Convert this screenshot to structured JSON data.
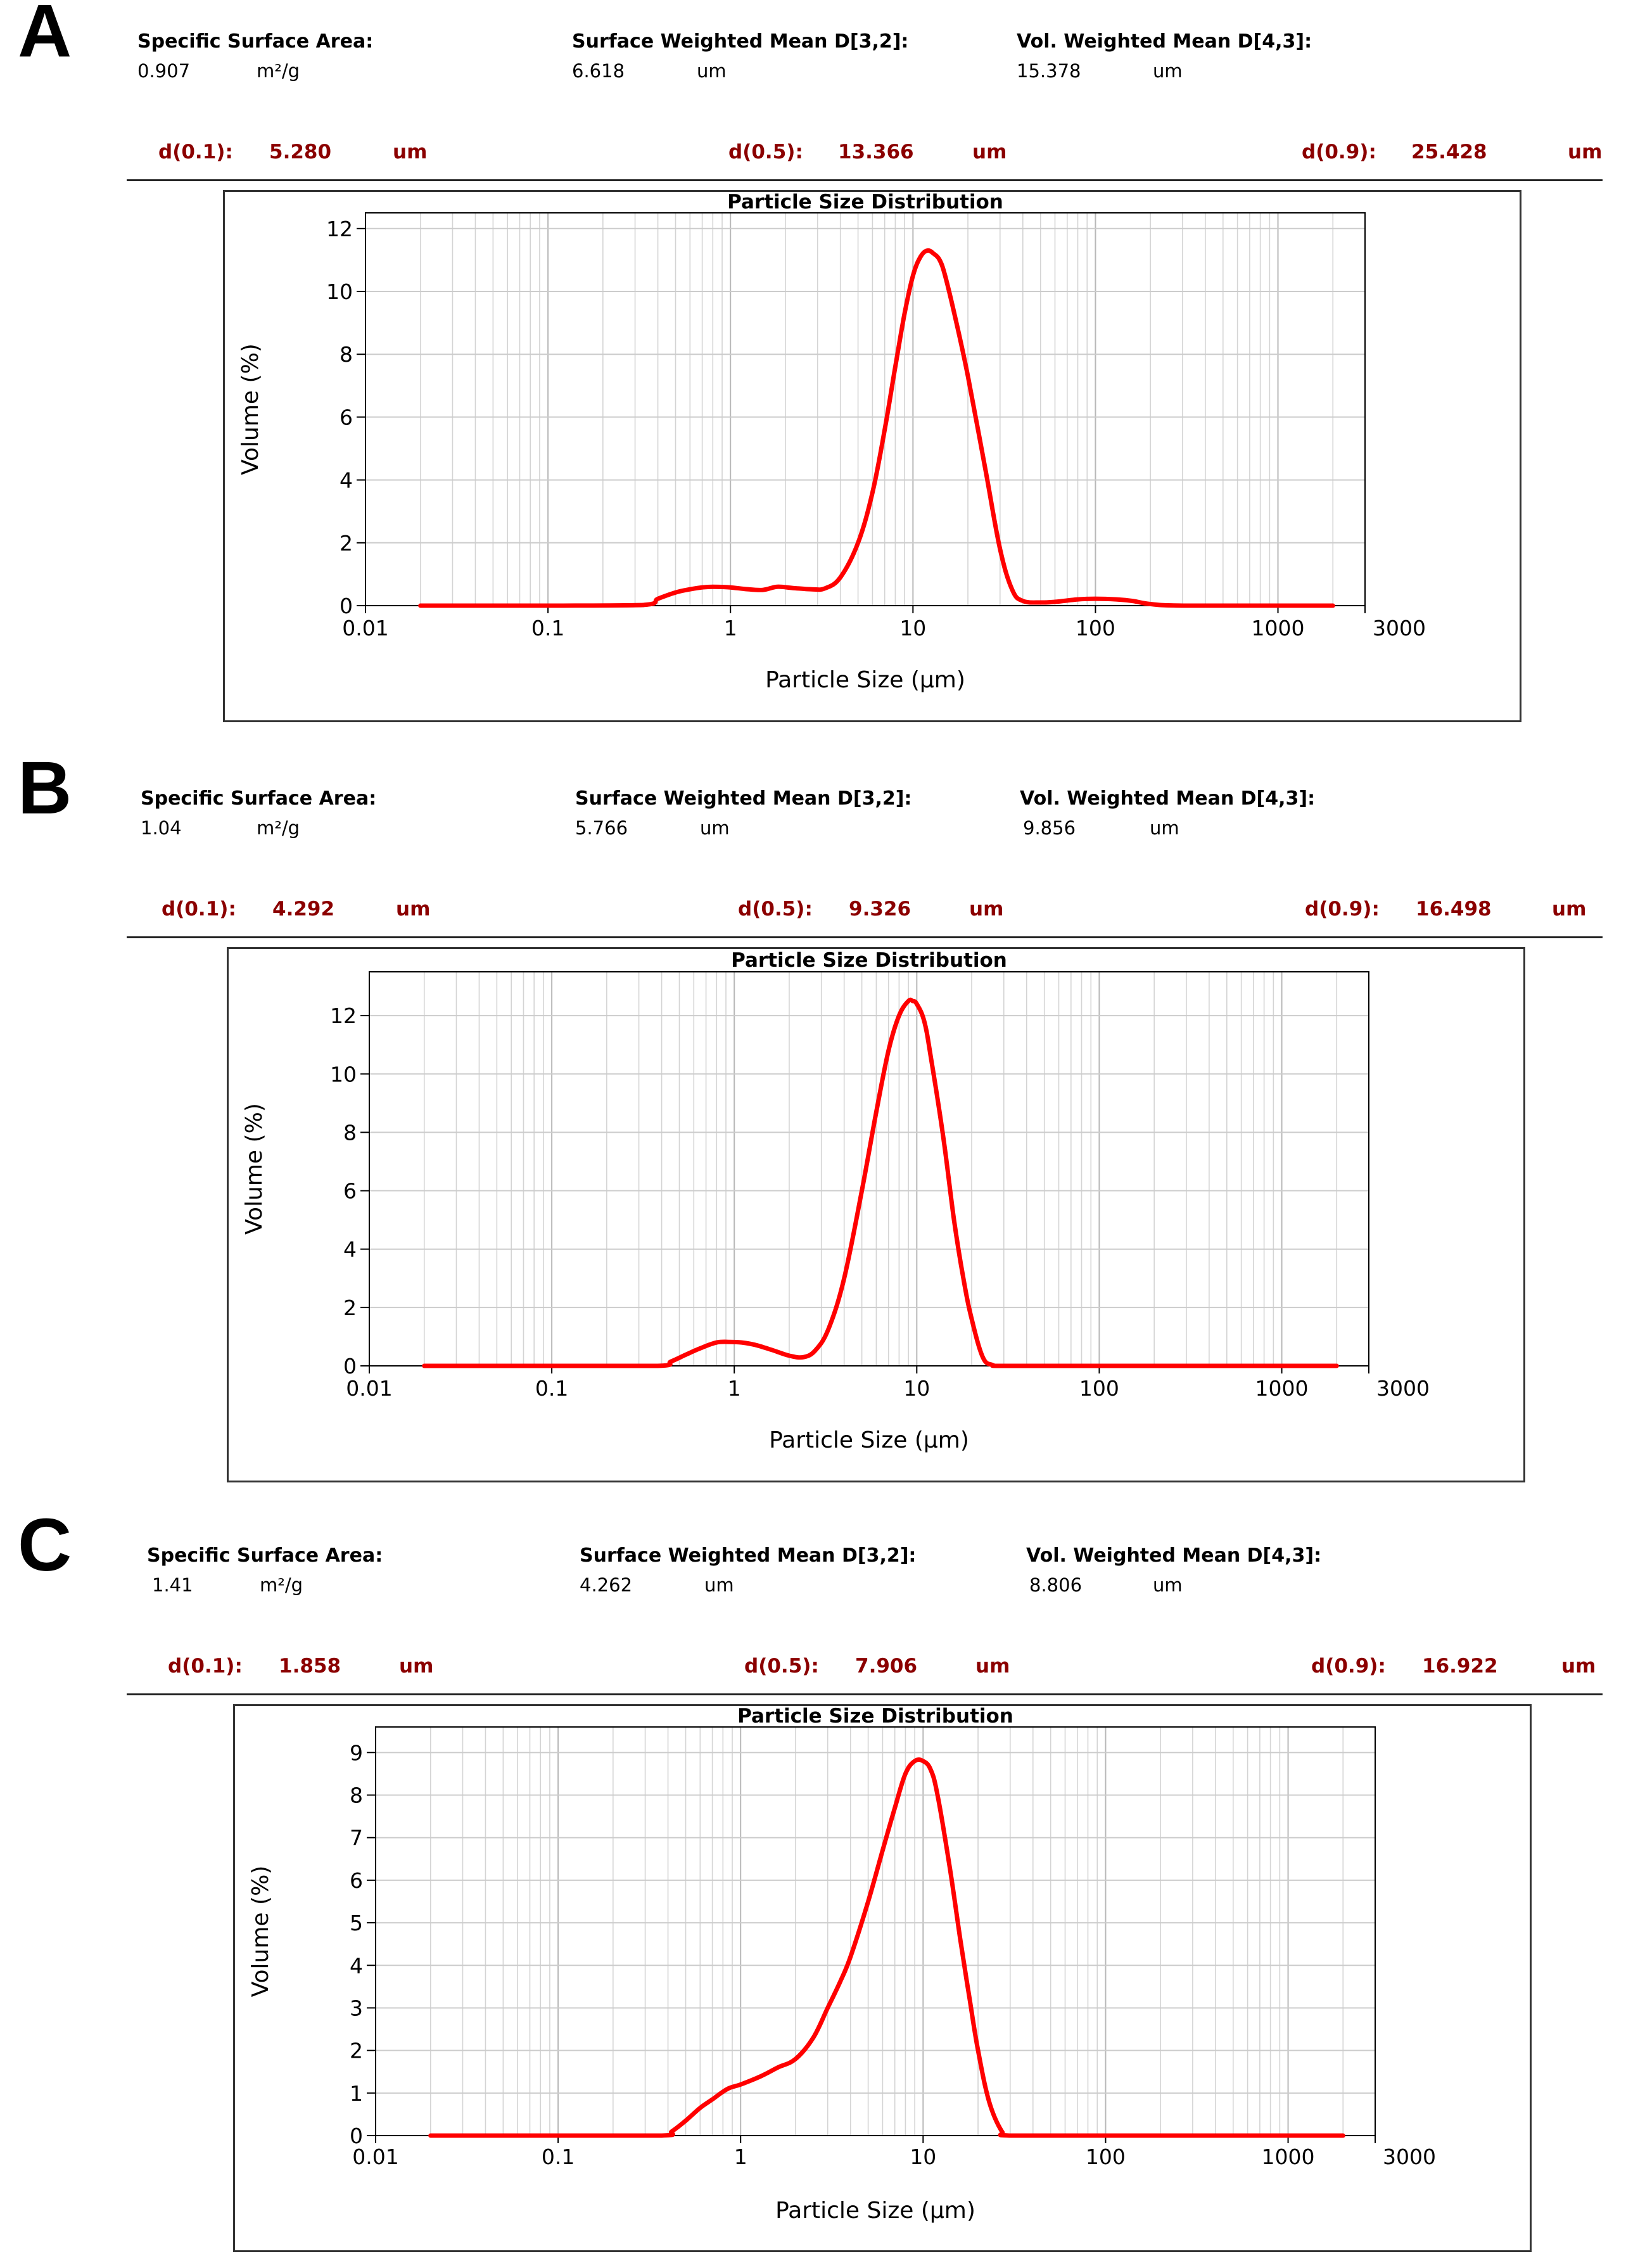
{
  "panels": [
    {
      "letter": "A",
      "ssa_label": "Specific Surface Area:",
      "ssa_value": "0.907",
      "ssa_unit": "m²/g",
      "d32_label": "Surface Weighted Mean D[3,2]:",
      "d32_value": "6.618",
      "d32_unit": "um",
      "d43_label": "Vol. Weighted Mean D[4,3]:",
      "d43_value": "15.378",
      "d43_unit": "um",
      "d01_label": "d(0.1):",
      "d01_value": "5.280",
      "d01_unit": "um",
      "d05_label": "d(0.5):",
      "d05_value": "13.366",
      "d05_unit": "um",
      "d09_label": "d(0.9):",
      "d09_value": "25.428",
      "d09_unit": "um"
    },
    {
      "letter": "B",
      "ssa_label": "Specific Surface Area:",
      "ssa_value": "1.04",
      "ssa_unit": "m²/g",
      "d32_label": "Surface Weighted Mean D[3,2]:",
      "d32_value": "5.766",
      "d32_unit": "um",
      "d43_label": "Vol. Weighted Mean D[4,3]:",
      "d43_value": "9.856",
      "d43_unit": "um",
      "d01_label": "d(0.1):",
      "d01_value": "4.292",
      "d01_unit": "um",
      "d05_label": "d(0.5):",
      "d05_value": "9.326",
      "d05_unit": "um",
      "d09_label": "d(0.9):",
      "d09_value": "16.498",
      "d09_unit": "um"
    },
    {
      "letter": "C",
      "ssa_label": "Specific Surface Area:",
      "ssa_value": "1.41",
      "ssa_unit": "m²/g",
      "d32_label": "Surface Weighted Mean D[3,2]:",
      "d32_value": "4.262",
      "d32_unit": "um",
      "d43_label": "Vol. Weighted Mean D[4,3]:",
      "d43_value": "8.806",
      "d43_unit": "um",
      "d01_label": "d(0.1):",
      "d01_value": "1.858",
      "d01_unit": "um",
      "d05_label": "d(0.5):",
      "d05_value": "7.906",
      "d05_unit": "um",
      "d09_label": "d(0.9):",
      "d09_value": "16.922",
      "d09_unit": "um"
    }
  ],
  "chart_data": [
    {
      "type": "line",
      "title": "Particle Size Distribution",
      "xlabel": "Particle Size (μm)",
      "ylabel": "Volume (%)",
      "xscale": "log",
      "xlim": [
        0.01,
        3000
      ],
      "ylim": [
        0,
        12.5
      ],
      "xticks": [
        0.01,
        0.1,
        1,
        10,
        100,
        1000,
        3000
      ],
      "xtick_labels": [
        "0.01",
        "0.1",
        "1",
        "10",
        "100",
        "1000",
        "3000"
      ],
      "yticks": [
        0,
        2,
        4,
        6,
        8,
        10,
        12
      ],
      "ytick_labels": [
        "0",
        "2",
        "4",
        "6",
        "8",
        "10",
        "12"
      ],
      "grid": true,
      "line_color": "#ff0000",
      "series": [
        {
          "name": "Volume",
          "x": [
            0.02,
            0.1,
            0.33,
            0.4,
            0.5,
            0.6,
            0.7,
            0.8,
            1.0,
            1.2,
            1.5,
            1.8,
            2.2,
            2.8,
            3.3,
            4.0,
            5.0,
            6.0,
            7.0,
            8.0,
            9.0,
            10.0,
            11.0,
            12.0,
            13.0,
            14.0,
            15.0,
            17.0,
            20.0,
            25.0,
            30.0,
            35.0,
            40.0,
            50.0,
            60.0,
            80.0,
            100.0,
            130.0,
            160.0,
            200.0,
            300.0,
            1000.0,
            2000.0
          ],
          "y": [
            0,
            0,
            0.02,
            0.22,
            0.42,
            0.52,
            0.58,
            0.6,
            0.58,
            0.53,
            0.5,
            0.6,
            0.56,
            0.52,
            0.55,
            0.9,
            2.0,
            3.6,
            5.6,
            7.6,
            9.3,
            10.5,
            11.1,
            11.3,
            11.2,
            11.0,
            10.5,
            9.2,
            7.3,
            4.3,
            1.8,
            0.5,
            0.15,
            0.1,
            0.12,
            0.2,
            0.22,
            0.2,
            0.15,
            0.05,
            0,
            0,
            0
          ]
        }
      ]
    },
    {
      "type": "line",
      "title": "Particle Size Distribution",
      "xlabel": "Particle Size (μm)",
      "ylabel": "Volume (%)",
      "xscale": "log",
      "xlim": [
        0.01,
        3000
      ],
      "ylim": [
        0,
        13.5
      ],
      "xticks": [
        0.01,
        0.1,
        1,
        10,
        100,
        1000,
        3000
      ],
      "xtick_labels": [
        "0.01",
        "0.1",
        "1",
        "10",
        "100",
        "1000",
        "3000"
      ],
      "yticks": [
        0,
        2,
        4,
        6,
        8,
        10,
        12
      ],
      "ytick_labels": [
        "0",
        "2",
        "4",
        "6",
        "8",
        "10",
        "12"
      ],
      "grid": true,
      "line_color": "#ff0000",
      "series": [
        {
          "name": "Volume",
          "x": [
            0.02,
            0.1,
            0.38,
            0.45,
            0.55,
            0.65,
            0.8,
            0.95,
            1.1,
            1.3,
            1.6,
            2.0,
            2.4,
            2.8,
            3.3,
            4.0,
            5.0,
            6.0,
            7.0,
            8.0,
            9.0,
            9.5,
            10.0,
            11.0,
            12.0,
            14.0,
            16.0,
            18.0,
            20.0,
            23.0,
            26.0,
            30.0,
            100.0,
            1000.0,
            2000.0
          ],
          "y": [
            0,
            0,
            0,
            0.15,
            0.4,
            0.6,
            0.8,
            0.82,
            0.8,
            0.72,
            0.55,
            0.35,
            0.3,
            0.55,
            1.3,
            3.0,
            6.0,
            8.7,
            10.8,
            12.0,
            12.5,
            12.5,
            12.4,
            11.8,
            10.5,
            7.8,
            5.0,
            3.0,
            1.6,
            0.3,
            0.03,
            0,
            0,
            0,
            0
          ]
        }
      ]
    },
    {
      "type": "line",
      "title": "Particle Size Distribution",
      "xlabel": "Particle Size (μm)",
      "ylabel": "Volume (%)",
      "xscale": "log",
      "xlim": [
        0.01,
        3000
      ],
      "ylim": [
        0,
        9.6
      ],
      "xticks": [
        0.01,
        0.1,
        1,
        10,
        100,
        1000,
        3000
      ],
      "xtick_labels": [
        "0.01",
        "0.1",
        "1",
        "10",
        "100",
        "1000",
        "3000"
      ],
      "yticks": [
        0,
        1,
        2,
        3,
        4,
        5,
        6,
        7,
        8,
        9
      ],
      "ytick_labels": [
        "0",
        "1",
        "2",
        "3",
        "4",
        "5",
        "6",
        "7",
        "8",
        "9"
      ],
      "grid": true,
      "line_color": "#ff0000",
      "series": [
        {
          "name": "Volume",
          "x": [
            0.02,
            0.1,
            0.37,
            0.42,
            0.5,
            0.6,
            0.7,
            0.85,
            1.0,
            1.3,
            1.6,
            2.0,
            2.5,
            3.0,
            3.5,
            4.0,
            5.0,
            6.0,
            7.0,
            8.0,
            9.0,
            10.0,
            11.0,
            12.0,
            14.0,
            16.0,
            18.0,
            20.0,
            23.0,
            27.0,
            30.0,
            100.0,
            1000.0,
            2000.0
          ],
          "y": [
            0,
            0,
            0,
            0.1,
            0.35,
            0.65,
            0.85,
            1.1,
            1.2,
            1.4,
            1.6,
            1.8,
            2.3,
            3.0,
            3.6,
            4.2,
            5.5,
            6.7,
            7.7,
            8.5,
            8.8,
            8.8,
            8.6,
            8.0,
            6.3,
            4.6,
            3.2,
            2.0,
            0.8,
            0.1,
            0,
            0,
            0,
            0
          ]
        }
      ]
    }
  ]
}
